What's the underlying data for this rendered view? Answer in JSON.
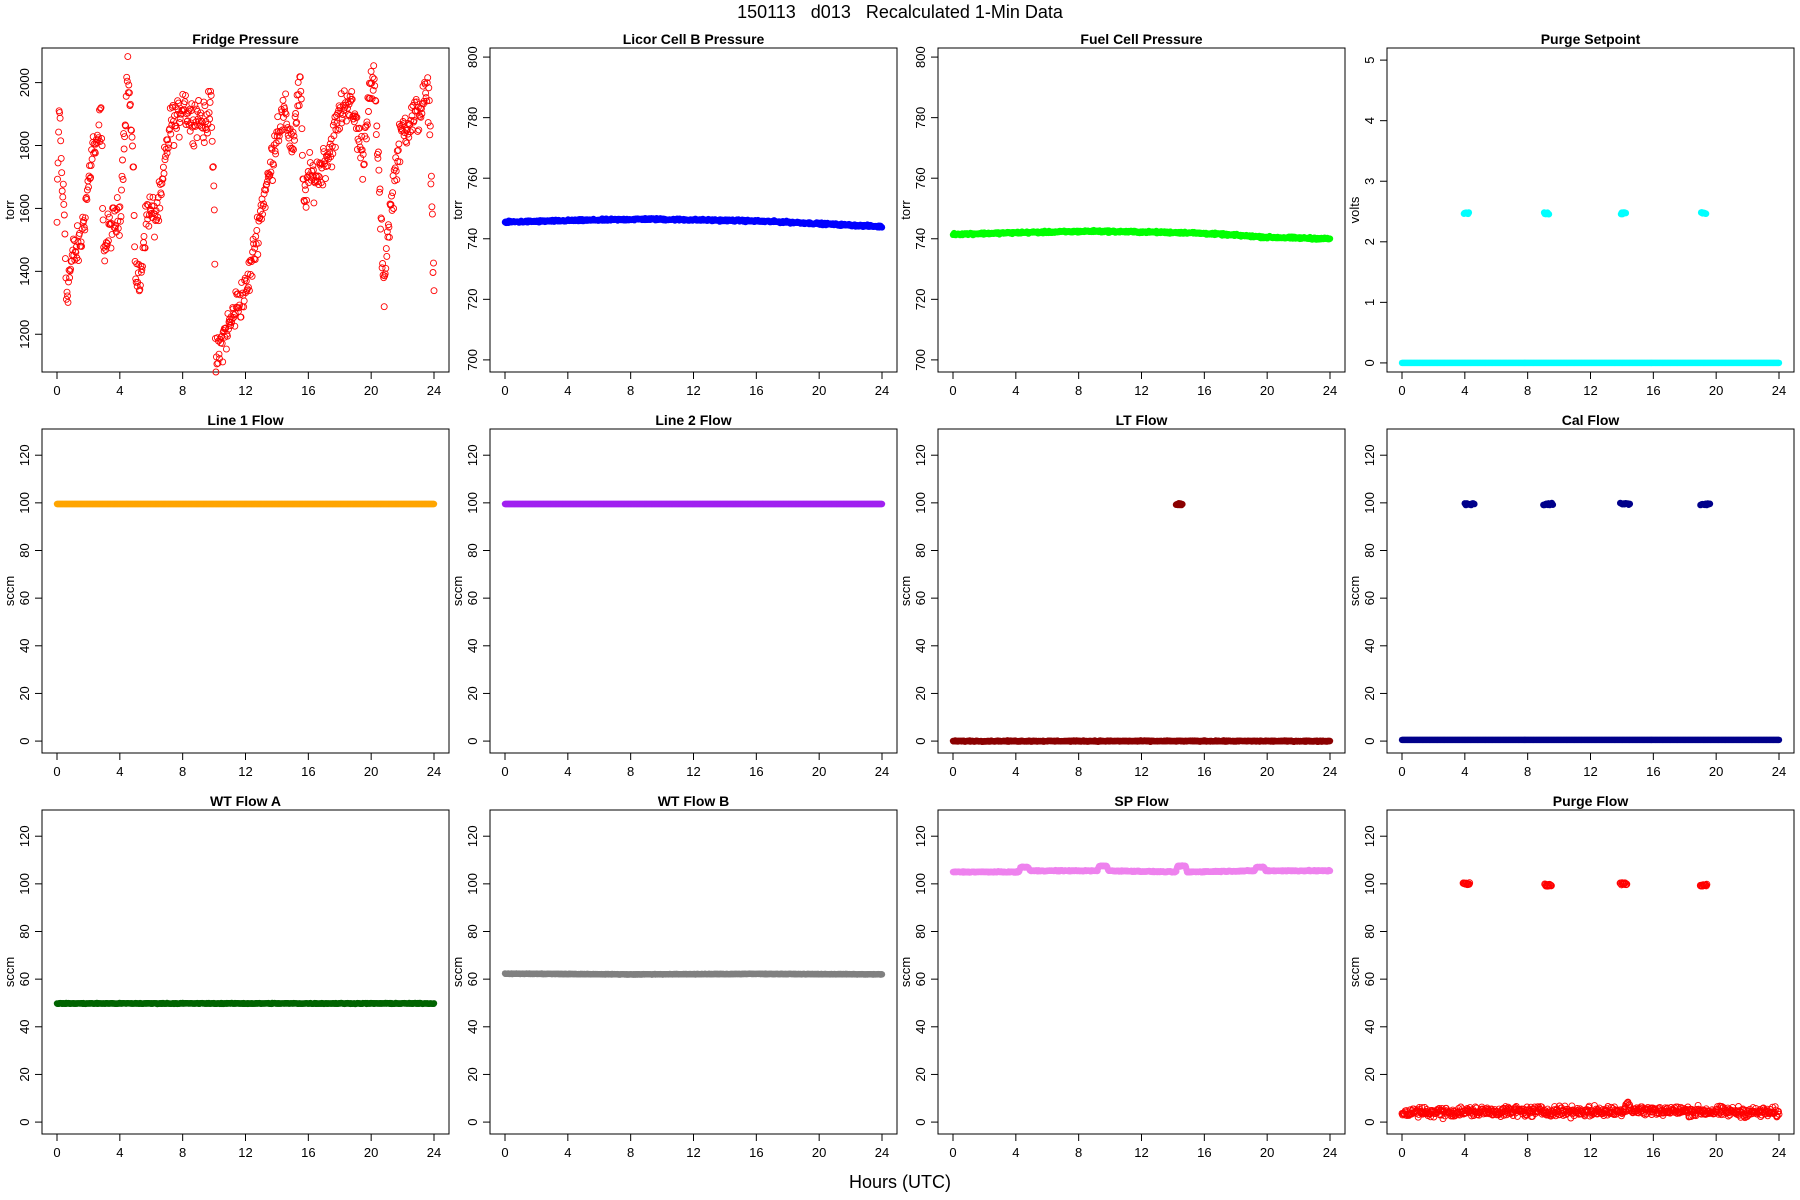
{
  "figure": {
    "title": "150113   d013   Recalculated 1-Min Data",
    "xlabel": "Hours (UTC)"
  },
  "chart_data": [
    {
      "type": "scatter",
      "title": "Fridge Pressure",
      "ylabel": "torr",
      "color": "#ff0000",
      "marker": "open-circle",
      "xlim": [
        0,
        24
      ],
      "ylim": [
        1080,
        2110
      ],
      "yticks": [
        1200,
        1400,
        1600,
        1800,
        2000
      ],
      "xticks": [
        0,
        4,
        8,
        12,
        16,
        20,
        24
      ],
      "series": [
        {
          "profile": [
            [
              0,
              1550
            ],
            [
              0.15,
              1950
            ],
            [
              0.3,
              1700
            ],
            [
              0.45,
              1600
            ],
            [
              0.6,
              1330
            ],
            [
              1.0,
              1450
            ],
            [
              1.5,
              1490
            ],
            [
              1.7,
              1560
            ],
            [
              2.0,
              1680
            ],
            [
              2.3,
              1800
            ],
            [
              2.5,
              1770
            ],
            [
              2.8,
              1900
            ],
            [
              3.0,
              1450
            ],
            [
              3.3,
              1530
            ],
            [
              3.6,
              1550
            ],
            [
              4.0,
              1580
            ],
            [
              4.3,
              1850
            ],
            [
              4.5,
              2050
            ],
            [
              4.8,
              1790
            ],
            [
              5.0,
              1400
            ],
            [
              5.3,
              1350
            ],
            [
              5.5,
              1500
            ],
            [
              5.8,
              1600
            ],
            [
              6.2,
              1570
            ],
            [
              6.6,
              1620
            ],
            [
              7.0,
              1800
            ],
            [
              7.3,
              1880
            ],
            [
              7.7,
              1870
            ],
            [
              8.0,
              1950
            ],
            [
              8.5,
              1880
            ],
            [
              9.0,
              1900
            ],
            [
              9.5,
              1850
            ],
            [
              9.8,
              1990
            ],
            [
              10.0,
              1600
            ],
            [
              10.1,
              1100
            ],
            [
              10.5,
              1180
            ],
            [
              11.0,
              1230
            ],
            [
              11.5,
              1300
            ],
            [
              12.0,
              1330
            ],
            [
              12.5,
              1450
            ],
            [
              13.0,
              1600
            ],
            [
              13.5,
              1700
            ],
            [
              14.0,
              1850
            ],
            [
              14.5,
              1900
            ],
            [
              15.0,
              1800
            ],
            [
              15.5,
              2000
            ],
            [
              15.7,
              1620
            ],
            [
              16.0,
              1700
            ],
            [
              16.5,
              1700
            ],
            [
              17.0,
              1750
            ],
            [
              17.5,
              1800
            ],
            [
              18.0,
              1900
            ],
            [
              18.5,
              1950
            ],
            [
              19.0,
              1880
            ],
            [
              19.5,
              1750
            ],
            [
              19.8,
              1950
            ],
            [
              20.2,
              2000
            ],
            [
              20.5,
              1700
            ],
            [
              20.8,
              1320
            ],
            [
              21.0,
              1500
            ],
            [
              21.3,
              1620
            ],
            [
              21.6,
              1750
            ],
            [
              22.0,
              1850
            ],
            [
              22.5,
              1880
            ],
            [
              23.0,
              1900
            ],
            [
              23.4,
              1950
            ],
            [
              23.7,
              1950
            ],
            [
              24.0,
              1340
            ]
          ],
          "noise": 55,
          "n": 720
        }
      ]
    },
    {
      "type": "scatter",
      "title": "Licor Cell B Pressure",
      "ylabel": "torr",
      "color": "#0000ff",
      "marker": "filled-circle",
      "xlim": [
        0,
        24
      ],
      "ylim": [
        696,
        803
      ],
      "yticks": [
        700,
        720,
        740,
        760,
        780,
        800
      ],
      "xticks": [
        0,
        4,
        8,
        12,
        16,
        20,
        24
      ],
      "series": [
        {
          "profile": [
            [
              0,
              745.5
            ],
            [
              4,
              746
            ],
            [
              9,
              746.5
            ],
            [
              15,
              746
            ],
            [
              18,
              745.5
            ],
            [
              20,
              745
            ],
            [
              24,
              744
            ]
          ],
          "noise": 0.3,
          "n": 700
        }
      ]
    },
    {
      "type": "scatter",
      "title": "Fuel Cell Pressure",
      "ylabel": "torr",
      "color": "#00ff00",
      "marker": "filled-circle",
      "xlim": [
        0,
        24
      ],
      "ylim": [
        696,
        803
      ],
      "yticks": [
        700,
        720,
        740,
        760,
        780,
        800
      ],
      "xticks": [
        0,
        4,
        8,
        12,
        16,
        20,
        24
      ],
      "series": [
        {
          "profile": [
            [
              0,
              741.5
            ],
            [
              4,
              742
            ],
            [
              9,
              742.5
            ],
            [
              15,
              742
            ],
            [
              17,
              741.5
            ],
            [
              20,
              740.5
            ],
            [
              24,
              740
            ]
          ],
          "noise": 0.3,
          "n": 700
        }
      ]
    },
    {
      "type": "scatter",
      "title": "Purge Setpoint",
      "ylabel": "volts",
      "color": "#00ffff",
      "marker": "filled-circle",
      "xlim": [
        0,
        24
      ],
      "ylim": [
        -0.15,
        5.2
      ],
      "yticks": [
        0,
        1,
        2,
        3,
        4,
        5
      ],
      "xticks": [
        0,
        4,
        8,
        12,
        16,
        20,
        24
      ],
      "series": [
        {
          "profile": [
            [
              0,
              0
            ],
            [
              24,
              0
            ]
          ],
          "noise": 0,
          "n": 700
        },
        {
          "clusters": [
            [
              4.1,
              2.47
            ],
            [
              9.2,
              2.47
            ],
            [
              14.1,
              2.47
            ],
            [
              19.2,
              2.47
            ]
          ],
          "spread": 0.3,
          "n": 8
        }
      ]
    },
    {
      "type": "scatter",
      "title": "Line 1 Flow",
      "ylabel": "sccm",
      "color": "#ffa500",
      "marker": "filled-circle",
      "xlim": [
        0,
        24
      ],
      "ylim": [
        -5,
        131
      ],
      "yticks": [
        0,
        20,
        40,
        60,
        80,
        100,
        120
      ],
      "xticks": [
        0,
        4,
        8,
        12,
        16,
        20,
        24
      ],
      "series": [
        {
          "profile": [
            [
              0,
              99.5
            ],
            [
              24,
              99.5
            ]
          ],
          "noise": 0,
          "n": 700
        }
      ]
    },
    {
      "type": "scatter",
      "title": "Line 2 Flow",
      "ylabel": "sccm",
      "color": "#a020f0",
      "marker": "filled-circle",
      "xlim": [
        0,
        24
      ],
      "ylim": [
        -5,
        131
      ],
      "yticks": [
        0,
        20,
        40,
        60,
        80,
        100,
        120
      ],
      "xticks": [
        0,
        4,
        8,
        12,
        16,
        20,
        24
      ],
      "series": [
        {
          "profile": [
            [
              0,
              99.5
            ],
            [
              24,
              99.5
            ]
          ],
          "noise": 0,
          "n": 700
        }
      ]
    },
    {
      "type": "scatter",
      "title": "LT Flow",
      "ylabel": "sccm",
      "color": "#8b0000",
      "marker": "filled-circle",
      "xlim": [
        0,
        24
      ],
      "ylim": [
        -5,
        131
      ],
      "yticks": [
        0,
        20,
        40,
        60,
        80,
        100,
        120
      ],
      "xticks": [
        0,
        4,
        8,
        12,
        16,
        20,
        24
      ],
      "series": [
        {
          "profile": [
            [
              0,
              0
            ],
            [
              24,
              0
            ]
          ],
          "noise": 0.2,
          "n": 700
        },
        {
          "clusters": [
            [
              14.4,
              99.5
            ]
          ],
          "spread": 0.4,
          "n": 8
        }
      ]
    },
    {
      "type": "scatter",
      "title": "Cal Flow",
      "ylabel": "sccm",
      "color": "#00008b",
      "marker": "filled-circle",
      "xlim": [
        0,
        24
      ],
      "ylim": [
        -5,
        131
      ],
      "yticks": [
        0,
        20,
        40,
        60,
        80,
        100,
        120
      ],
      "xticks": [
        0,
        4,
        8,
        12,
        16,
        20,
        24
      ],
      "series": [
        {
          "profile": [
            [
              0,
              0.5
            ],
            [
              24,
              0.5
            ]
          ],
          "noise": 0,
          "n": 700
        },
        {
          "clusters": [
            [
              4.3,
              99.5
            ],
            [
              9.3,
              99.5
            ],
            [
              14.2,
              99.5
            ],
            [
              19.3,
              99.5
            ]
          ],
          "spread": 0.6,
          "n": 10
        }
      ]
    },
    {
      "type": "scatter",
      "title": "WT Flow A",
      "ylabel": "sccm",
      "color": "#006400",
      "marker": "filled-circle",
      "xlim": [
        0,
        24
      ],
      "ylim": [
        -5,
        131
      ],
      "yticks": [
        0,
        20,
        40,
        60,
        80,
        100,
        120
      ],
      "xticks": [
        0,
        4,
        8,
        12,
        16,
        20,
        24
      ],
      "series": [
        {
          "profile": [
            [
              0,
              49.8
            ],
            [
              24,
              49.8
            ]
          ],
          "noise": 0.15,
          "n": 700
        }
      ]
    },
    {
      "type": "scatter",
      "title": "WT Flow B",
      "ylabel": "sccm",
      "color": "#808080",
      "marker": "filled-circle",
      "xlim": [
        0,
        24
      ],
      "ylim": [
        -5,
        131
      ],
      "yticks": [
        0,
        20,
        40,
        60,
        80,
        100,
        120
      ],
      "xticks": [
        0,
        4,
        8,
        12,
        16,
        20,
        24
      ],
      "series": [
        {
          "profile": [
            [
              0,
              62.3
            ],
            [
              8,
              62
            ],
            [
              16,
              62.2
            ],
            [
              24,
              62
            ]
          ],
          "noise": 0.1,
          "n": 700
        }
      ]
    },
    {
      "type": "scatter",
      "title": "SP Flow",
      "ylabel": "sccm",
      "color": "#ee82ee",
      "marker": "filled-circle",
      "xlim": [
        0,
        24
      ],
      "ylim": [
        -5,
        131
      ],
      "yticks": [
        0,
        20,
        40,
        60,
        80,
        100,
        120
      ],
      "xticks": [
        0,
        4,
        8,
        12,
        16,
        20,
        24
      ],
      "series": [
        {
          "profile": [
            [
              0,
              105
            ],
            [
              4.2,
              105
            ],
            [
              4.3,
              107
            ],
            [
              4.8,
              107
            ],
            [
              4.9,
              105.5
            ],
            [
              9.2,
              105.5
            ],
            [
              9.3,
              107.5
            ],
            [
              9.8,
              107.5
            ],
            [
              9.9,
              105.5
            ],
            [
              14.2,
              105
            ],
            [
              14.3,
              107.5
            ],
            [
              14.8,
              107.5
            ],
            [
              14.9,
              105
            ],
            [
              19.2,
              105.5
            ],
            [
              19.3,
              107
            ],
            [
              19.8,
              107
            ],
            [
              19.9,
              105.5
            ],
            [
              24,
              105.5
            ]
          ],
          "noise": 0.2,
          "n": 700
        }
      ]
    },
    {
      "type": "scatter",
      "title": "Purge Flow",
      "ylabel": "sccm",
      "color": "#ff0000",
      "marker": "open-circle",
      "xlim": [
        0,
        24
      ],
      "ylim": [
        -5,
        131
      ],
      "yticks": [
        0,
        20,
        40,
        60,
        80,
        100,
        120
      ],
      "xticks": [
        0,
        4,
        8,
        12,
        16,
        20,
        24
      ],
      "series": [
        {
          "profile": [
            [
              0,
              4
            ],
            [
              6,
              4.5
            ],
            [
              14,
              4.5
            ],
            [
              14.4,
              8
            ],
            [
              14.6,
              5
            ],
            [
              24,
              4
            ]
          ],
          "noise": 1.8,
          "n": 700
        },
        {
          "clusters": [
            [
              4.1,
              100
            ],
            [
              9.3,
              99.5
            ],
            [
              14.1,
              100
            ],
            [
              19.2,
              99.5
            ]
          ],
          "spread": 0.4,
          "n": 12
        }
      ]
    }
  ]
}
